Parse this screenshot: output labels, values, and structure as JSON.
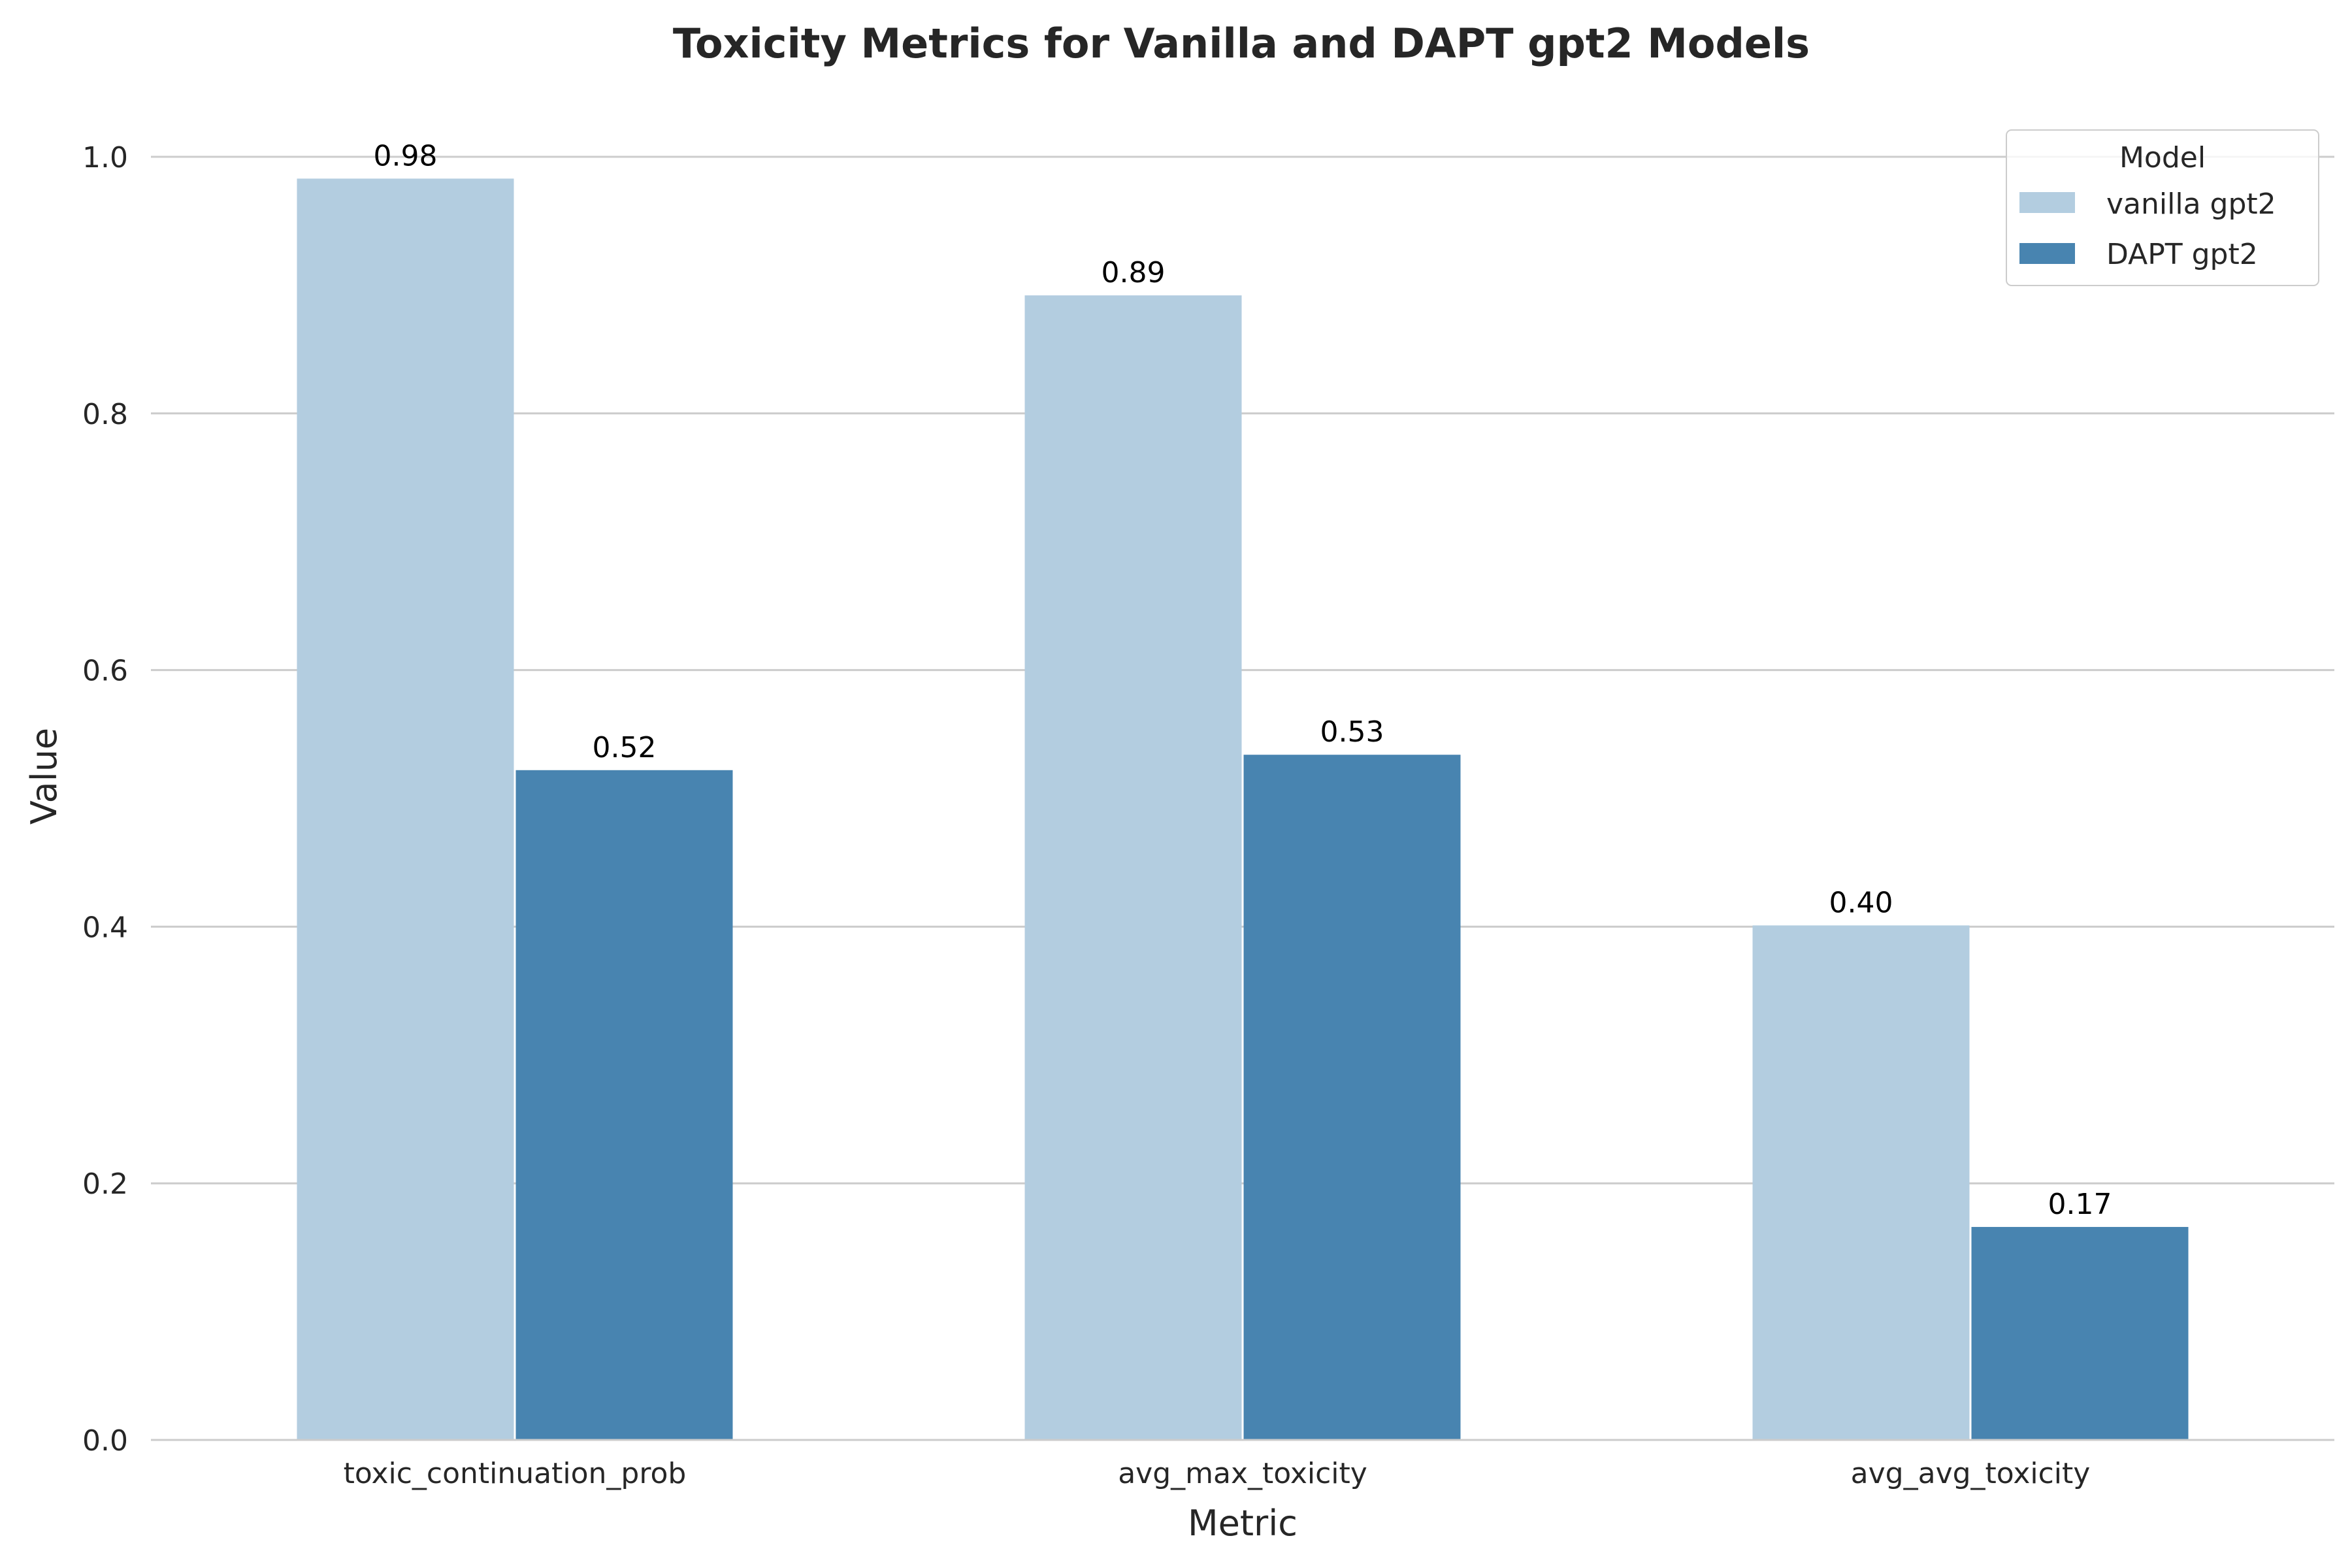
{
  "chart_data": {
    "type": "bar",
    "title": "Toxicity Metrics for Vanilla and DAPT gpt2 Models",
    "xlabel": "Metric",
    "ylabel": "Value",
    "categories": [
      "toxic_continuation_prob",
      "avg_max_toxicity",
      "avg_avg_toxicity"
    ],
    "series": [
      {
        "name": "vanilla gpt2",
        "values": [
          0.983,
          0.892,
          0.401
        ],
        "labels": [
          "0.98",
          "0.89",
          "0.40"
        ],
        "color": "#b3cde0"
      },
      {
        "name": "DAPT gpt2",
        "values": [
          0.522,
          0.534,
          0.166
        ],
        "labels": [
          "0.52",
          "0.53",
          "0.17"
        ],
        "color": "#4884b0"
      }
    ],
    "ylim": [
      0,
      1.0
    ],
    "yticks": [
      "0.0",
      "0.2",
      "0.4",
      "0.6",
      "0.8",
      "1.0"
    ],
    "grid": true,
    "legend": {
      "title": "Model",
      "placement": "top-right"
    }
  }
}
